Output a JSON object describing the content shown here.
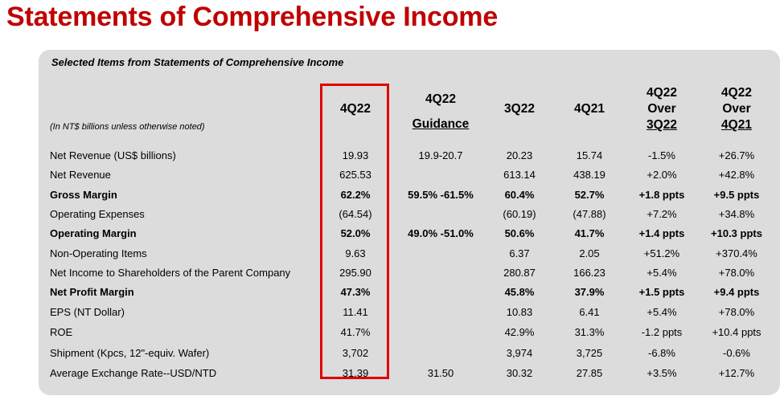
{
  "page_title": "Statements of Comprehensive Income",
  "panel_title": "Selected Items from Statements of Comprehensive Income",
  "units_note": "(In NT$ billions unless otherwise noted)",
  "columns": {
    "c4q22": [
      "4Q22"
    ],
    "guidance": [
      "4Q22",
      "Guidance"
    ],
    "c3q22": [
      "3Q22"
    ],
    "c4q21": [
      "4Q21"
    ],
    "over3q22": [
      "4Q22",
      "Over",
      "3Q22"
    ],
    "over4q21": [
      "4Q22",
      "Over",
      "4Q21"
    ]
  },
  "highlight_color": "#e00000",
  "title_color": "#c00000",
  "rows": [
    {
      "label": "Net Revenue (US$ billions)",
      "bold": false,
      "c4q22": "19.93",
      "guidance": "19.9-20.7",
      "c3q22": "20.23",
      "c4q21": "15.74",
      "over3q22": "-1.5%",
      "over4q21": "+26.7%"
    },
    {
      "label": "Net Revenue",
      "bold": false,
      "c4q22": "625.53",
      "guidance": "",
      "c3q22": "613.14",
      "c4q21": "438.19",
      "over3q22": "+2.0%",
      "over4q21": "+42.8%"
    },
    {
      "label": "Gross Margin",
      "bold": true,
      "c4q22": "62.2%",
      "guidance": "59.5% -61.5%",
      "c3q22": "60.4%",
      "c4q21": "52.7%",
      "over3q22": "+1.8 ppts",
      "over4q21": "+9.5 ppts"
    },
    {
      "label": "Operating Expenses",
      "bold": false,
      "c4q22": "(64.54)",
      "guidance": "",
      "c3q22": "(60.19)",
      "c4q21": "(47.88)",
      "over3q22": "+7.2%",
      "over4q21": "+34.8%"
    },
    {
      "label": "Operating Margin",
      "bold": true,
      "c4q22": "52.0%",
      "guidance": "49.0% -51.0%",
      "c3q22": "50.6%",
      "c4q21": "41.7%",
      "over3q22": "+1.4 ppts",
      "over4q21": "+10.3 ppts"
    },
    {
      "label": "Non-Operating Items",
      "bold": false,
      "c4q22": "9.63",
      "guidance": "",
      "c3q22": "6.37",
      "c4q21": "2.05",
      "over3q22": "+51.2%",
      "over4q21": "+370.4%"
    },
    {
      "label": "Net Income to Shareholders of the Parent Company",
      "bold": false,
      "c4q22": "295.90",
      "guidance": "",
      "c3q22": "280.87",
      "c4q21": "166.23",
      "over3q22": "+5.4%",
      "over4q21": "+78.0%"
    },
    {
      "label": "Net Profit Margin",
      "bold": true,
      "c4q22": "47.3%",
      "guidance": "",
      "c3q22": "45.8%",
      "c4q21": "37.9%",
      "over3q22": "+1.5 ppts",
      "over4q21": "+9.4 ppts"
    },
    {
      "label": "EPS (NT Dollar)",
      "bold": false,
      "c4q22": "11.41",
      "guidance": "",
      "c3q22": "10.83",
      "c4q21": "6.41",
      "over3q22": "+5.4%",
      "over4q21": "+78.0%"
    },
    {
      "label": "ROE",
      "bold": false,
      "c4q22": "41.7%",
      "guidance": "",
      "c3q22": "42.9%",
      "c4q21": "31.3%",
      "over3q22": "-1.2 ppts",
      "over4q21": "+10.4 ppts"
    },
    {
      "label": "Shipment (Kpcs, 12\"-equiv. Wafer)",
      "bold": false,
      "c4q22": "3,702",
      "guidance": "",
      "c3q22": "3,974",
      "c4q21": "3,725",
      "over3q22": "-6.8%",
      "over4q21": "-0.6%"
    },
    {
      "label": "Average Exchange Rate--USD/NTD",
      "bold": false,
      "c4q22": "31.39",
      "guidance": "31.50",
      "c3q22": "30.32",
      "c4q21": "27.85",
      "over3q22": "+3.5%",
      "over4q21": "+12.7%"
    }
  ]
}
